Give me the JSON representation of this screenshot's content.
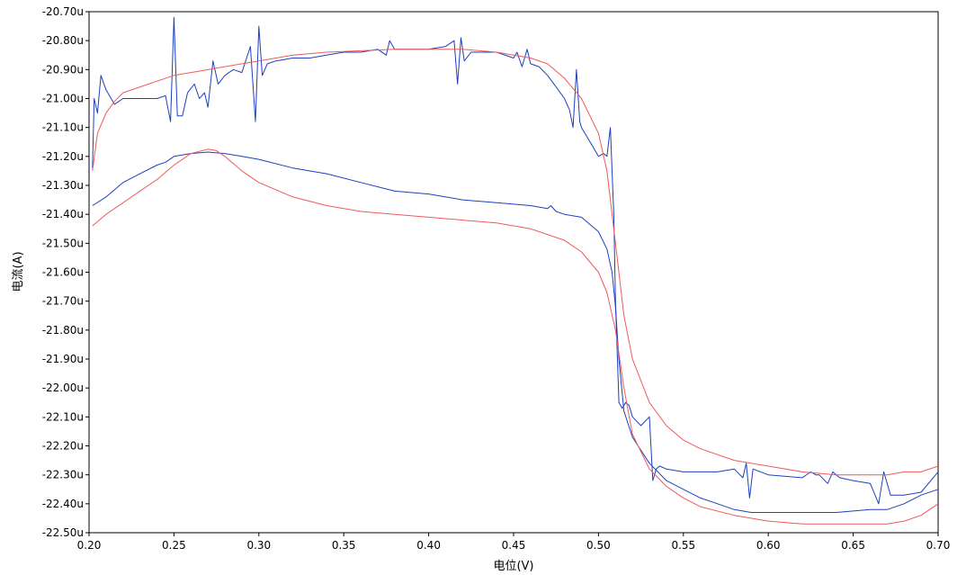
{
  "chart_data": {
    "type": "line",
    "title": "",
    "xlabel": "电位(V)",
    "ylabel": "电流(A)",
    "xlim": [
      0.2,
      0.7
    ],
    "ylim": [
      -22.5,
      -20.7
    ],
    "grid": false,
    "legend": "none",
    "x_ticks": [
      "0.20",
      "0.25",
      "0.30",
      "0.35",
      "0.40",
      "0.45",
      "0.50",
      "0.55",
      "0.60",
      "0.65",
      "0.70"
    ],
    "y_ticks": [
      "-20.70u",
      "-20.80u",
      "-20.90u",
      "-21.00u",
      "-21.10u",
      "-21.20u",
      "-21.30u",
      "-21.40u",
      "-21.50u",
      "-21.60u",
      "-21.70u",
      "-21.80u",
      "-21.90u",
      "-22.00u",
      "-22.10u",
      "-22.20u",
      "-22.30u",
      "-22.40u",
      "-22.50u"
    ],
    "series": [
      {
        "color": "#1e3fbf",
        "x": [
          0.202,
          0.203,
          0.205,
          0.207,
          0.21,
          0.215,
          0.22,
          0.23,
          0.24,
          0.245,
          0.248,
          0.25,
          0.252,
          0.255,
          0.258,
          0.262,
          0.265,
          0.268,
          0.27,
          0.273,
          0.276,
          0.28,
          0.285,
          0.29,
          0.295,
          0.298,
          0.3,
          0.302,
          0.305,
          0.31,
          0.32,
          0.33,
          0.34,
          0.35,
          0.36,
          0.37,
          0.375,
          0.377,
          0.38,
          0.39,
          0.4,
          0.41,
          0.415,
          0.417,
          0.419,
          0.421,
          0.425,
          0.43,
          0.44,
          0.45,
          0.452,
          0.455,
          0.458,
          0.46,
          0.465,
          0.47,
          0.475,
          0.48,
          0.483,
          0.485,
          0.487,
          0.489,
          0.49,
          0.495,
          0.5,
          0.503,
          0.505,
          0.507,
          0.509,
          0.51,
          0.512,
          0.514,
          0.516,
          0.518,
          0.52,
          0.525,
          0.53,
          0.532,
          0.534,
          0.536,
          0.54,
          0.55,
          0.56,
          0.57,
          0.58,
          0.585,
          0.587,
          0.589,
          0.591,
          0.6,
          0.62,
          0.625,
          0.628,
          0.63,
          0.635,
          0.638,
          0.642,
          0.65,
          0.66,
          0.665,
          0.668,
          0.672,
          0.68,
          0.69,
          0.7
        ],
        "y": [
          -21.24,
          -21.0,
          -21.05,
          -20.92,
          -20.97,
          -21.02,
          -21.0,
          -21.0,
          -21.0,
          -20.99,
          -21.08,
          -20.72,
          -21.06,
          -21.06,
          -20.98,
          -20.95,
          -21.0,
          -20.98,
          -21.03,
          -20.87,
          -20.95,
          -20.92,
          -20.9,
          -20.91,
          -20.82,
          -21.08,
          -20.75,
          -20.92,
          -20.88,
          -20.87,
          -20.86,
          -20.86,
          -20.85,
          -20.84,
          -20.84,
          -20.83,
          -20.85,
          -20.8,
          -20.83,
          -20.83,
          -20.83,
          -20.82,
          -20.8,
          -20.95,
          -20.79,
          -20.87,
          -20.84,
          -20.84,
          -20.84,
          -20.86,
          -20.84,
          -20.89,
          -20.83,
          -20.88,
          -20.89,
          -20.92,
          -20.96,
          -21.0,
          -21.04,
          -21.1,
          -20.9,
          -21.08,
          -21.1,
          -21.15,
          -21.2,
          -21.19,
          -21.2,
          -21.1,
          -21.4,
          -21.7,
          -22.05,
          -22.07,
          -22.05,
          -22.06,
          -22.1,
          -22.13,
          -22.1,
          -22.32,
          -22.28,
          -22.27,
          -22.28,
          -22.29,
          -22.29,
          -22.29,
          -22.28,
          -22.31,
          -22.26,
          -22.38,
          -22.28,
          -22.3,
          -22.31,
          -22.29,
          -22.3,
          -22.3,
          -22.33,
          -22.29,
          -22.31,
          -22.32,
          -22.33,
          -22.4,
          -22.29,
          -22.37,
          -22.37,
          -22.36,
          -22.29
        ]
      },
      {
        "color": "#1e3fbf",
        "x": [
          0.202,
          0.21,
          0.22,
          0.23,
          0.24,
          0.245,
          0.25,
          0.26,
          0.27,
          0.28,
          0.29,
          0.3,
          0.32,
          0.34,
          0.36,
          0.38,
          0.4,
          0.42,
          0.44,
          0.46,
          0.47,
          0.472,
          0.475,
          0.48,
          0.49,
          0.5,
          0.505,
          0.508,
          0.51,
          0.512,
          0.515,
          0.52,
          0.53,
          0.54,
          0.55,
          0.56,
          0.57,
          0.58,
          0.59,
          0.6,
          0.62,
          0.64,
          0.66,
          0.67,
          0.68,
          0.69,
          0.7
        ],
        "y": [
          -21.37,
          -21.34,
          -21.29,
          -21.26,
          -21.23,
          -21.22,
          -21.2,
          -21.19,
          -21.185,
          -21.19,
          -21.2,
          -21.21,
          -21.24,
          -21.26,
          -21.29,
          -21.32,
          -21.33,
          -21.35,
          -21.36,
          -21.37,
          -21.38,
          -21.37,
          -21.39,
          -21.4,
          -21.41,
          -21.46,
          -21.52,
          -21.6,
          -21.72,
          -21.9,
          -22.08,
          -22.17,
          -22.26,
          -22.32,
          -22.35,
          -22.38,
          -22.4,
          -22.42,
          -22.43,
          -22.43,
          -22.43,
          -22.43,
          -22.42,
          -22.42,
          -22.4,
          -22.37,
          -22.35
        ]
      },
      {
        "color": "#ef5a5a",
        "x": [
          0.202,
          0.205,
          0.21,
          0.215,
          0.22,
          0.23,
          0.24,
          0.25,
          0.26,
          0.28,
          0.3,
          0.32,
          0.34,
          0.36,
          0.38,
          0.4,
          0.42,
          0.44,
          0.46,
          0.47,
          0.48,
          0.49,
          0.5,
          0.505,
          0.51,
          0.515,
          0.52,
          0.53,
          0.54,
          0.55,
          0.56,
          0.58,
          0.6,
          0.62,
          0.64,
          0.66,
          0.67,
          0.68,
          0.69,
          0.7
        ],
        "y": [
          -21.25,
          -21.12,
          -21.05,
          -21.01,
          -20.98,
          -20.96,
          -20.94,
          -20.92,
          -20.91,
          -20.89,
          -20.87,
          -20.85,
          -20.84,
          -20.835,
          -20.83,
          -20.83,
          -20.83,
          -20.84,
          -20.86,
          -20.88,
          -20.93,
          -21.0,
          -21.12,
          -21.25,
          -21.5,
          -21.75,
          -21.9,
          -22.05,
          -22.13,
          -22.18,
          -22.21,
          -22.25,
          -22.27,
          -22.29,
          -22.3,
          -22.3,
          -22.3,
          -22.29,
          -22.29,
          -22.27
        ]
      },
      {
        "color": "#ef5a5a",
        "x": [
          0.202,
          0.21,
          0.22,
          0.23,
          0.24,
          0.25,
          0.26,
          0.27,
          0.275,
          0.28,
          0.29,
          0.3,
          0.32,
          0.34,
          0.36,
          0.38,
          0.4,
          0.42,
          0.44,
          0.46,
          0.48,
          0.49,
          0.5,
          0.505,
          0.51,
          0.515,
          0.52,
          0.53,
          0.54,
          0.55,
          0.56,
          0.58,
          0.6,
          0.62,
          0.64,
          0.66,
          0.67,
          0.68,
          0.69,
          0.7
        ],
        "y": [
          -21.44,
          -21.4,
          -21.36,
          -21.32,
          -21.28,
          -21.23,
          -21.19,
          -21.175,
          -21.18,
          -21.2,
          -21.25,
          -21.29,
          -21.34,
          -21.37,
          -21.39,
          -21.4,
          -21.41,
          -21.42,
          -21.43,
          -21.45,
          -21.49,
          -21.53,
          -21.6,
          -21.67,
          -21.8,
          -22.0,
          -22.16,
          -22.28,
          -22.34,
          -22.38,
          -22.41,
          -22.44,
          -22.46,
          -22.47,
          -22.47,
          -22.47,
          -22.47,
          -22.46,
          -22.44,
          -22.4
        ]
      }
    ]
  }
}
